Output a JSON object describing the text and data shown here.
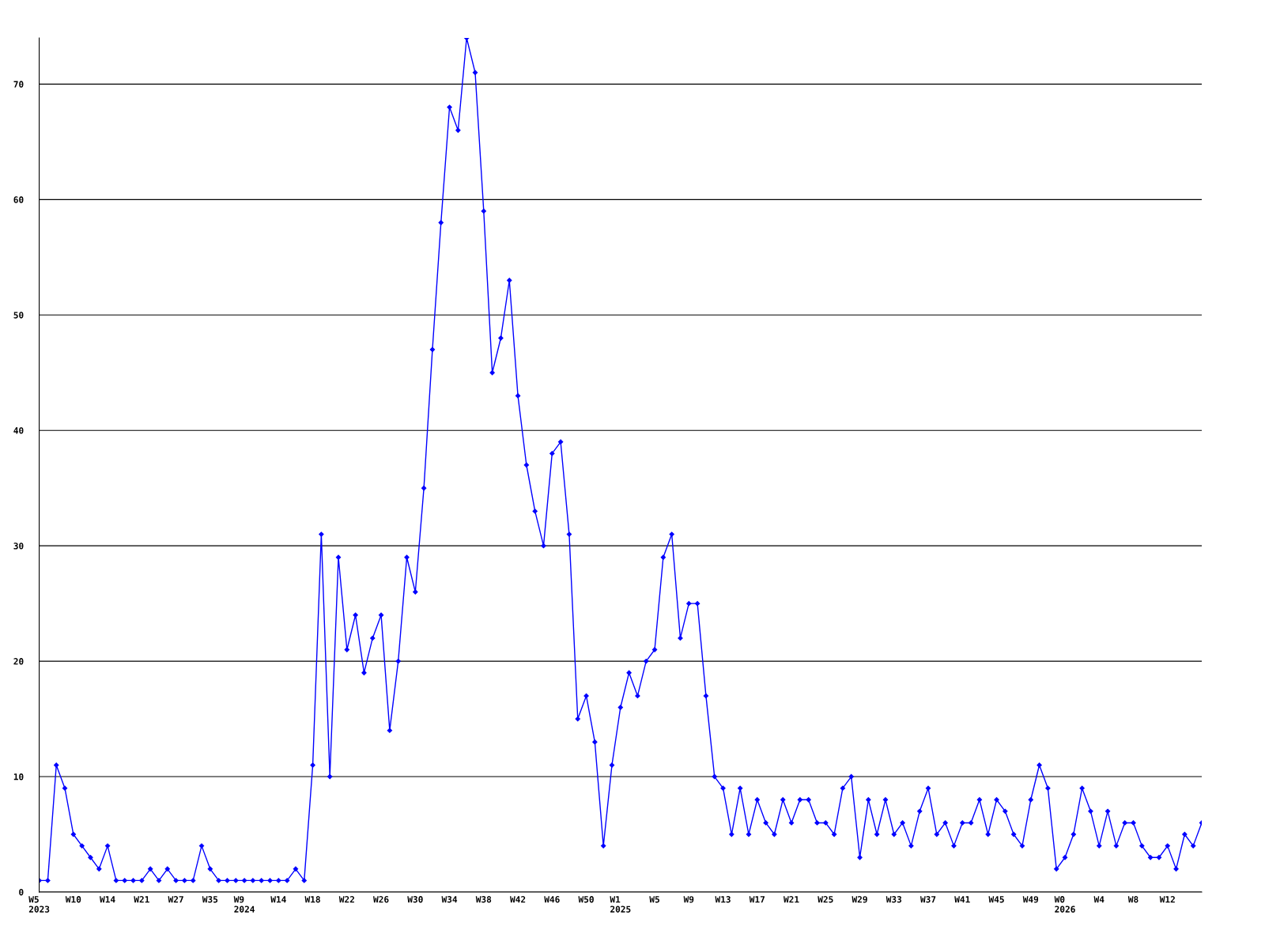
{
  "chart_data": {
    "type": "line",
    "color": "#0000ff",
    "marker": "diamond",
    "grid": "y",
    "ylim": [
      0,
      74
    ],
    "yticks": [
      0,
      10,
      20,
      30,
      40,
      50,
      60,
      70
    ],
    "categories": [
      "W5\n2023",
      null,
      null,
      null,
      "W10",
      null,
      null,
      null,
      "W14",
      null,
      null,
      null,
      "W21",
      null,
      null,
      null,
      "W27",
      null,
      null,
      null,
      "W35",
      null,
      null,
      null,
      "W9\n2024",
      null,
      null,
      null,
      "W14",
      null,
      null,
      null,
      "W18",
      null,
      null,
      null,
      "W22",
      null,
      null,
      null,
      "W26",
      null,
      null,
      null,
      "W30",
      null,
      null,
      null,
      "W34",
      null,
      null,
      null,
      "W38",
      null,
      null,
      null,
      "W42",
      null,
      null,
      null,
      "W46",
      null,
      null,
      null,
      "W50",
      null,
      null,
      null,
      "W1\n2025",
      null,
      null,
      null,
      "W5",
      null,
      null,
      null,
      "W9",
      null,
      null,
      null,
      "W13",
      null,
      null,
      null,
      "W17",
      null,
      null,
      null,
      "W21",
      null,
      null,
      null,
      "W25",
      null,
      null,
      null,
      "W29",
      null,
      null,
      null,
      "W33",
      null,
      null,
      null,
      "W37",
      null,
      null,
      null,
      "W41",
      null,
      null,
      null,
      "W45",
      null,
      null,
      null,
      "W49",
      null,
      null,
      null,
      "W0\n2026",
      null,
      null,
      null,
      "W4",
      null,
      null,
      null,
      "W8",
      null,
      null,
      null,
      "W12",
      null,
      null,
      null,
      null
    ],
    "values": [
      1,
      1,
      11,
      9,
      5,
      4,
      3,
      2,
      4,
      1,
      1,
      1,
      1,
      2,
      1,
      2,
      1,
      1,
      1,
      4,
      2,
      1,
      1,
      1,
      1,
      1,
      1,
      1,
      1,
      1,
      2,
      1,
      11,
      31,
      10,
      29,
      21,
      24,
      19,
      22,
      24,
      14,
      20,
      29,
      26,
      35,
      47,
      58,
      68,
      66,
      74,
      71,
      59,
      45,
      48,
      53,
      43,
      37,
      33,
      30,
      38,
      39,
      31,
      15,
      17,
      13,
      4,
      11,
      16,
      19,
      17,
      20,
      21,
      29,
      31,
      22,
      25,
      25,
      17,
      10,
      9,
      5,
      9,
      5,
      8,
      6,
      5,
      8,
      6,
      8,
      8,
      6,
      6,
      5,
      9,
      10,
      3,
      8,
      5,
      8,
      5,
      6,
      4,
      7,
      9,
      5,
      6,
      4,
      6,
      6,
      8,
      5,
      8,
      7,
      5,
      4,
      8,
      11,
      9,
      2,
      3,
      5,
      9,
      7,
      4,
      7,
      4,
      6,
      6,
      4,
      3,
      3,
      4,
      2,
      5,
      4,
      6
    ]
  }
}
